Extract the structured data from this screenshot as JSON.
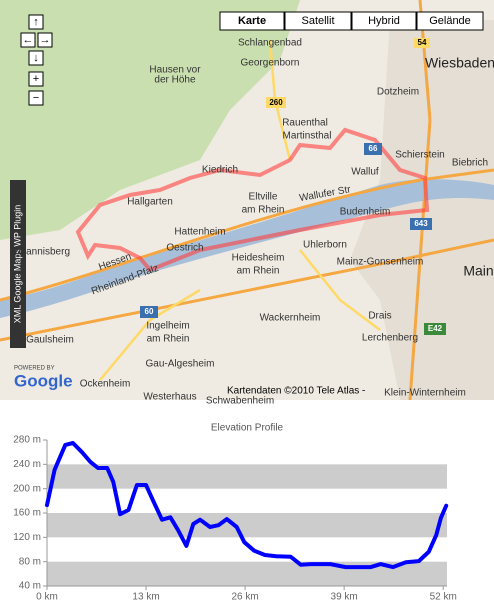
{
  "map": {
    "type_buttons": [
      "Karte",
      "Satellit",
      "Hybrid",
      "Gelände"
    ],
    "controls": [
      "↑",
      "←",
      "→",
      "↓",
      "+",
      "−"
    ],
    "plugin_label": "XML Google Maps WP Plugin",
    "powered_by": "POWERED BY",
    "logo": "Google",
    "copyright": "Kartendaten ©2010 Tele Atlas -",
    "places": [
      "Schlangenbad",
      "Georgenborn",
      "Hausen vor",
      "der Höhe",
      "Wiesbaden",
      "Rauenthal",
      "Martinsthal",
      "Schierstein",
      "Biebrich",
      "Kiedrich",
      "Eltville",
      "am Rhein",
      "Walluf",
      "Hallgarten",
      "Budenheim",
      "Oestrich",
      "Hattenheim",
      "Heidesheim",
      "am Rhein",
      "Uhlerborn",
      "Mainz-Gonsenheim",
      "Mainz",
      "Hessen",
      "Rheinland-Pfalz",
      "Ingelheim",
      "am Rhein",
      "Wackernheim",
      "Gau-Algesheim",
      "Ockenheim",
      "Westerhaus",
      "Gaulsheim",
      "Drais",
      "Lerchenberg",
      "Johannisberg",
      "Klein-Winternheim",
      "Wallufer Str",
      "Dotzheim",
      "Schwabenheim"
    ],
    "roads": [
      "54",
      "260",
      "66",
      "643",
      "60",
      "E42"
    ]
  },
  "chart_data": {
    "type": "line",
    "title": "Elevation Profile",
    "x": [
      0,
      1,
      2.4,
      3.4,
      4.6,
      5.7,
      6.7,
      7.9,
      8.7,
      9.6,
      10.7,
      11.8,
      13,
      13.9,
      15.1,
      16.2,
      17.2,
      18.3,
      19.2,
      20.1,
      21.4,
      22.5,
      23.6,
      24.9,
      25.9,
      27.2,
      28.6,
      30.1,
      32,
      33.3,
      34.6,
      37.2,
      39.2,
      42.5,
      43.8,
      45.4,
      47.1,
      48.8,
      50.1,
      51.1,
      51.7,
      52.4
    ],
    "values": [
      173,
      231,
      272,
      275,
      260,
      244,
      234,
      234,
      211,
      158,
      165,
      206,
      206,
      181,
      149,
      153,
      132,
      106,
      142,
      149,
      137,
      140,
      150,
      137,
      112,
      98,
      91,
      89,
      88,
      75,
      76,
      76,
      71,
      71,
      76,
      71,
      79,
      81,
      96,
      124,
      152,
      172
    ],
    "color": "#0000ff",
    "xlim": [
      0,
      52.5
    ],
    "ylim": [
      40,
      280
    ],
    "xticks": [
      {
        "value": 0,
        "label": "0 km"
      },
      {
        "value": 13,
        "label": "13 km"
      },
      {
        "value": 26,
        "label": "26 km"
      },
      {
        "value": 39,
        "label": "39 km"
      },
      {
        "value": 52,
        "label": "52 km"
      }
    ],
    "yticks": [
      {
        "value": 40,
        "label": "40 m"
      },
      {
        "value": 80,
        "label": "80 m"
      },
      {
        "value": 120,
        "label": "120 m"
      },
      {
        "value": 160,
        "label": "160 m"
      },
      {
        "value": 200,
        "label": "200 m"
      },
      {
        "value": 240,
        "label": "240 m"
      },
      {
        "value": 280,
        "label": "280 m"
      }
    ],
    "grid": "bands",
    "band_color": "#cccccc"
  }
}
